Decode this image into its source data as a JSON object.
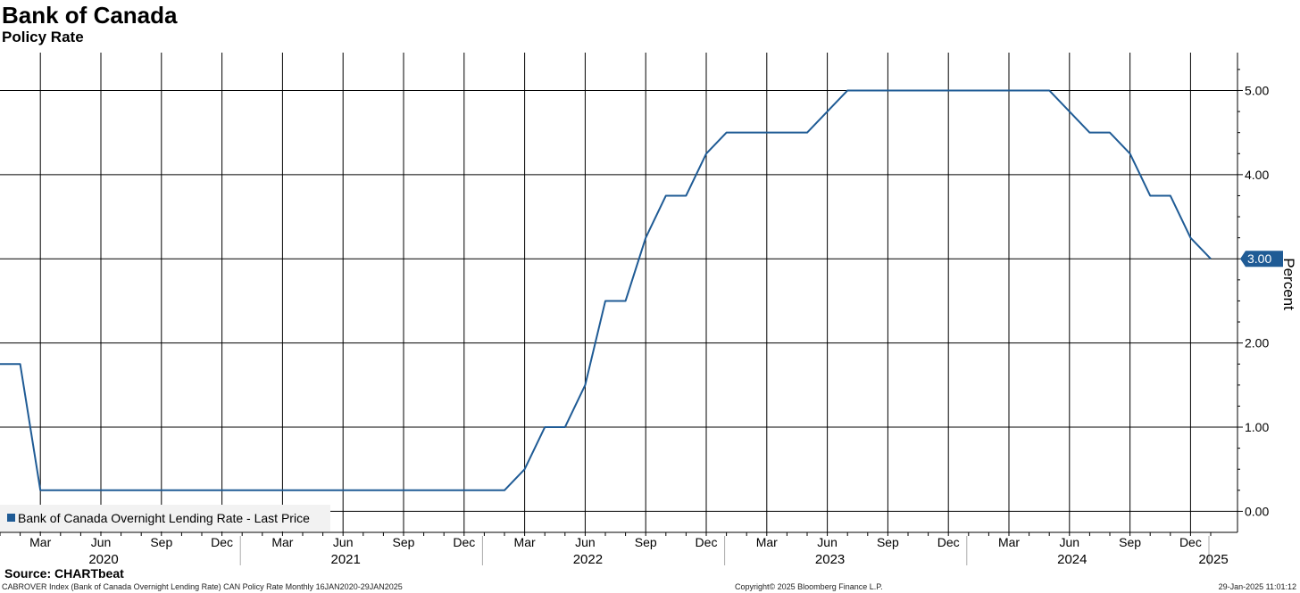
{
  "header": {
    "title": "Bank of Canada",
    "subtitle": "Policy Rate"
  },
  "footer": {
    "source": "Source: CHARTbeat",
    "description": "CABROVER Index (Bank of Canada Overnight Lending Rate) CAN Policy Rate  Monthly 16JAN2020-29JAN2025",
    "copyright": "Copyright© 2025 Bloomberg Finance L.P.",
    "timestamp": "29-Jan-2025 11:01:12"
  },
  "colors": {
    "line": "#1f5b95",
    "grid": "#000000",
    "label_box": "#1f5b95"
  },
  "chart_data": {
    "type": "line",
    "title": "Bank of Canada",
    "subtitle": "Policy Rate",
    "ylabel": "Percent",
    "ylim": [
      -0.25,
      5.45
    ],
    "yticks": [
      0,
      1,
      2,
      3,
      4,
      5
    ],
    "ytick_labels": [
      "0.00",
      "1.00",
      "2.00",
      "3.00",
      "4.00",
      "5.00"
    ],
    "grid": true,
    "legend_position": "bottom-left",
    "last_value_label": "3.00",
    "xlim": [
      "2020-01",
      "2025-01"
    ],
    "x_ticks": [
      "2020-03",
      "2020-06",
      "2020-09",
      "2020-12",
      "2021-03",
      "2021-06",
      "2021-09",
      "2021-12",
      "2022-03",
      "2022-06",
      "2022-09",
      "2022-12",
      "2023-03",
      "2023-06",
      "2023-09",
      "2023-12",
      "2024-03",
      "2024-06",
      "2024-09",
      "2024-12"
    ],
    "x_tick_labels": [
      "Mar",
      "Jun",
      "Sep",
      "Dec",
      "Mar",
      "Jun",
      "Sep",
      "Dec",
      "Mar",
      "Jun",
      "Sep",
      "Dec",
      "Mar",
      "Jun",
      "Sep",
      "Dec",
      "Mar",
      "Jun",
      "Sep",
      "Dec"
    ],
    "year_labels": [
      {
        "label": "2020",
        "at": "2020-06"
      },
      {
        "label": "2021",
        "at": "2021-06"
      },
      {
        "label": "2022",
        "at": "2022-06"
      },
      {
        "label": "2023",
        "at": "2023-06"
      },
      {
        "label": "2024",
        "at": "2024-06"
      },
      {
        "label": "2025",
        "at": "2025-01"
      }
    ],
    "year_separators": [
      "2021-01",
      "2022-01",
      "2023-01",
      "2024-01",
      "2025-01"
    ],
    "series": [
      {
        "name": "Bank of Canada Overnight Lending Rate - Last Price",
        "x": [
          "2020-01",
          "2020-02",
          "2020-03",
          "2020-04",
          "2020-05",
          "2020-06",
          "2020-07",
          "2020-08",
          "2020-09",
          "2020-10",
          "2020-11",
          "2020-12",
          "2021-01",
          "2021-02",
          "2021-03",
          "2021-04",
          "2021-05",
          "2021-06",
          "2021-07",
          "2021-08",
          "2021-09",
          "2021-10",
          "2021-11",
          "2021-12",
          "2022-01",
          "2022-02",
          "2022-03",
          "2022-04",
          "2022-05",
          "2022-06",
          "2022-07",
          "2022-08",
          "2022-09",
          "2022-10",
          "2022-11",
          "2022-12",
          "2023-01",
          "2023-02",
          "2023-03",
          "2023-04",
          "2023-05",
          "2023-06",
          "2023-07",
          "2023-08",
          "2023-09",
          "2023-10",
          "2023-11",
          "2023-12",
          "2024-01",
          "2024-02",
          "2024-03",
          "2024-04",
          "2024-05",
          "2024-06",
          "2024-07",
          "2024-08",
          "2024-09",
          "2024-10",
          "2024-11",
          "2024-12",
          "2025-01"
        ],
        "values": [
          1.75,
          1.75,
          0.25,
          0.25,
          0.25,
          0.25,
          0.25,
          0.25,
          0.25,
          0.25,
          0.25,
          0.25,
          0.25,
          0.25,
          0.25,
          0.25,
          0.25,
          0.25,
          0.25,
          0.25,
          0.25,
          0.25,
          0.25,
          0.25,
          0.25,
          0.25,
          0.5,
          1.0,
          1.0,
          1.5,
          2.5,
          2.5,
          3.25,
          3.75,
          3.75,
          4.25,
          4.5,
          4.5,
          4.5,
          4.5,
          4.5,
          4.75,
          5.0,
          5.0,
          5.0,
          5.0,
          5.0,
          5.0,
          5.0,
          5.0,
          5.0,
          5.0,
          5.0,
          4.75,
          4.5,
          4.5,
          4.25,
          3.75,
          3.75,
          3.25,
          3.0
        ]
      }
    ]
  }
}
